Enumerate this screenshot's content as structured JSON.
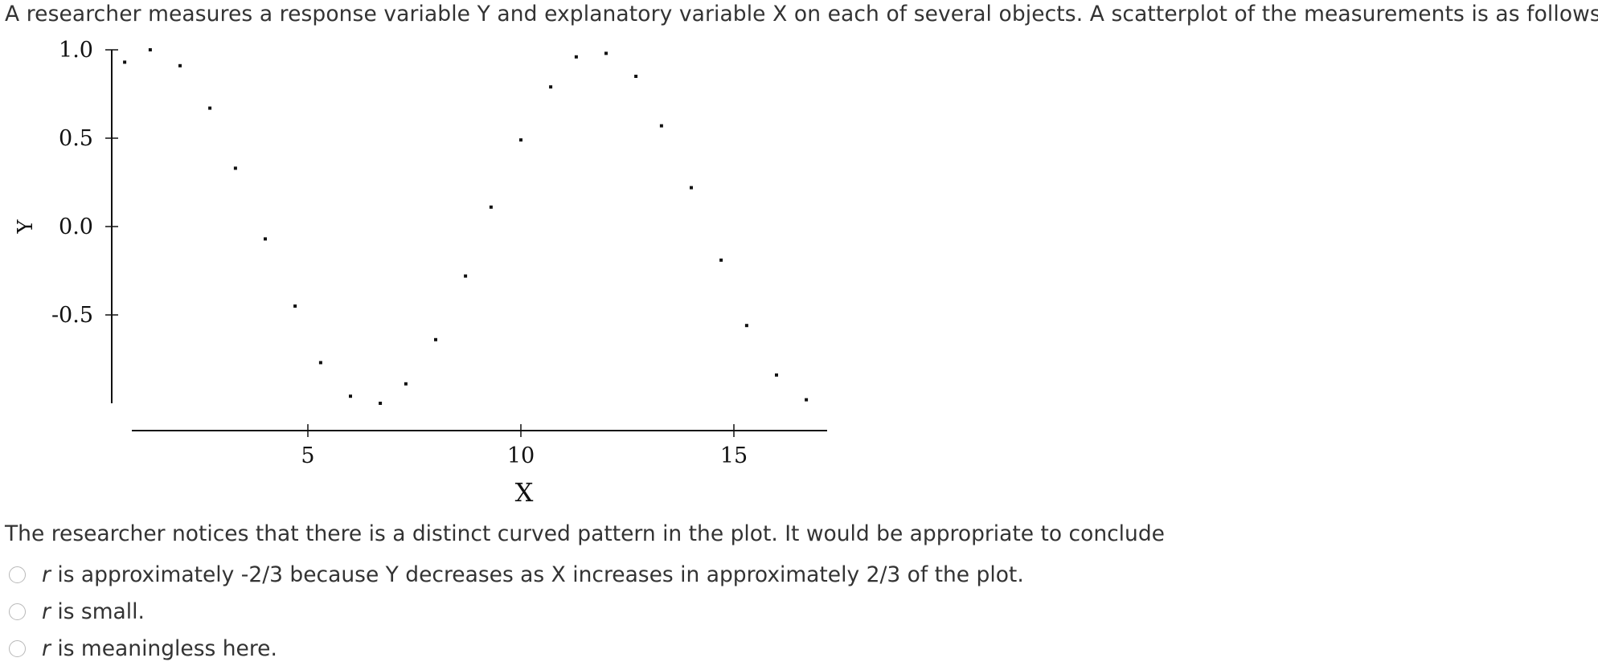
{
  "intro_text": "A researcher measures a response variable Y and explanatory variable X on each of several objects. A scatterplot of the measurements is as follows:",
  "question_text": "The researcher notices that there is a distinct curved pattern in the plot. It would be appropriate to conclude",
  "options": [
    {
      "var": "r",
      "text": " is approximately -2/3 because Y decreases as X increases in approximately 2/3 of the plot."
    },
    {
      "var": "r",
      "text": " is small."
    },
    {
      "var": "r",
      "text": " is meaningless here."
    }
  ],
  "chart_data": {
    "type": "scatter",
    "xlabel": "X",
    "ylabel": "Y",
    "xticks": [
      5,
      10,
      15
    ],
    "xtick_labels": [
      "5",
      "10",
      "15"
    ],
    "yticks": [
      1.0,
      0.5,
      0.0,
      -0.5
    ],
    "ytick_labels": [
      "1.0",
      "0.5",
      "0.0",
      "-0.5"
    ],
    "xlim": [
      0.5,
      17.2
    ],
    "ylim": [
      -1.0,
      1.0
    ],
    "grid": false,
    "points": [
      {
        "x": 0.7,
        "y": 0.93
      },
      {
        "x": 1.3,
        "y": 1.0
      },
      {
        "x": 2.0,
        "y": 0.91
      },
      {
        "x": 2.7,
        "y": 0.67
      },
      {
        "x": 3.3,
        "y": 0.33
      },
      {
        "x": 4.0,
        "y": -0.07
      },
      {
        "x": 4.7,
        "y": -0.45
      },
      {
        "x": 5.3,
        "y": -0.77
      },
      {
        "x": 6.0,
        "y": -0.96
      },
      {
        "x": 6.7,
        "y": -1.0
      },
      {
        "x": 7.3,
        "y": -0.89
      },
      {
        "x": 8.0,
        "y": -0.64
      },
      {
        "x": 8.7,
        "y": -0.28
      },
      {
        "x": 9.3,
        "y": 0.11
      },
      {
        "x": 10.0,
        "y": 0.49
      },
      {
        "x": 10.7,
        "y": 0.79
      },
      {
        "x": 11.3,
        "y": 0.96
      },
      {
        "x": 12.0,
        "y": 0.98
      },
      {
        "x": 12.7,
        "y": 0.85
      },
      {
        "x": 13.3,
        "y": 0.57
      },
      {
        "x": 14.0,
        "y": 0.22
      },
      {
        "x": 14.7,
        "y": -0.19
      },
      {
        "x": 15.3,
        "y": -0.56
      },
      {
        "x": 16.0,
        "y": -0.84
      },
      {
        "x": 16.7,
        "y": -0.98
      }
    ]
  }
}
